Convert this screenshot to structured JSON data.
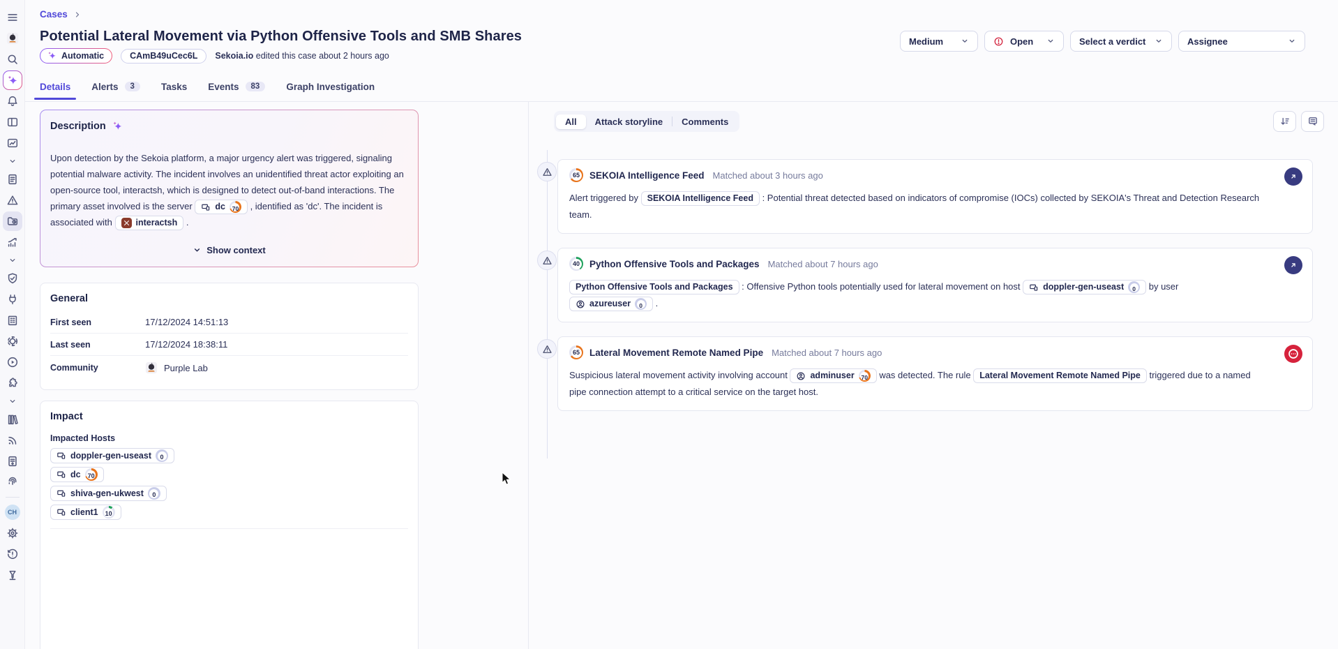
{
  "colors": {
    "accent": "#5149d9",
    "orange": "#e8741c",
    "green": "#1fa15c",
    "neutral_ring": "#c9cde9",
    "status_red": "#d6223c",
    "action_indigo": "#383b80"
  },
  "sidebar": {
    "items": [
      {
        "icon": "menu",
        "name": "menu"
      },
      {
        "icon": "mascot",
        "name": "community-avatar"
      },
      {
        "icon": "search",
        "name": "search"
      },
      {
        "icon": "sparkle",
        "name": "ai-assistant",
        "active": "grad"
      },
      {
        "icon": "bell",
        "name": "notifications"
      },
      {
        "icon": "layout",
        "name": "dashboards"
      },
      {
        "icon": "chartbox",
        "name": "analytics"
      },
      {
        "icon": "chevron",
        "name": "section-expand-1",
        "small": true
      },
      {
        "icon": "doclines",
        "name": "intelligence"
      },
      {
        "icon": "warn",
        "name": "alerts"
      },
      {
        "icon": "folderclock",
        "name": "cases",
        "active": "solid"
      },
      {
        "icon": "trend",
        "name": "statistics"
      },
      {
        "icon": "chevron",
        "name": "section-expand-2",
        "small": true
      },
      {
        "icon": "shieldcheck",
        "name": "security"
      },
      {
        "icon": "plug",
        "name": "integrations"
      },
      {
        "icon": "building",
        "name": "organization"
      },
      {
        "icon": "helm",
        "name": "helm"
      },
      {
        "icon": "playcircle",
        "name": "playbooks"
      },
      {
        "icon": "puzzle",
        "name": "extensions"
      },
      {
        "icon": "chevron",
        "name": "section-expand-3",
        "small": true
      },
      {
        "icon": "books",
        "name": "library"
      },
      {
        "icon": "rss",
        "name": "feeds"
      },
      {
        "icon": "docreport",
        "name": "reports"
      },
      {
        "icon": "touch",
        "name": "threat-hunting"
      },
      {
        "icon": "divider",
        "name": "sidebar-divider"
      },
      {
        "icon": "avatar-ch",
        "name": "user-avatar",
        "label": "CH"
      },
      {
        "icon": "gear",
        "name": "settings"
      },
      {
        "icon": "historyalert",
        "name": "activity-history"
      },
      {
        "icon": "flask",
        "name": "lab"
      }
    ]
  },
  "header": {
    "breadcrumb": "Cases",
    "title": "Potential Lateral Movement via Python Offensive Tools and SMB Shares",
    "badges": {
      "automatic": "Automatic",
      "case_id": "CAmB49uCec6L",
      "edited_by": "Sekoia.io",
      "edited_text": "edited this case about 2 hours ago"
    },
    "controls": {
      "priority": "Medium",
      "status": "Open",
      "verdict": "Select a verdict",
      "assignee": "Assignee"
    }
  },
  "tabs": [
    {
      "label": "Details",
      "active": true
    },
    {
      "label": "Alerts",
      "badge": "3"
    },
    {
      "label": "Tasks"
    },
    {
      "label": "Events",
      "badge": "83"
    },
    {
      "label": "Graph Investigation"
    }
  ],
  "description_card": {
    "title": "Description",
    "segments": [
      {
        "t": "Upon detection by the Sekoia platform, a major urgency alert was triggered, signaling potential malware activity. The incident involves an unidentified threat actor exploiting an open-source tool, interactsh, which is designed to detect out-of-band interactions. The primary asset involved is the server "
      },
      {
        "chip": "host",
        "label": "dc",
        "score": 70
      },
      {
        "t": " , identified as 'dc'. The incident is associated with "
      },
      {
        "chip": "malware",
        "label": "interactsh"
      },
      {
        "t": " ."
      }
    ],
    "show_context": "Show context"
  },
  "general_card": {
    "title": "General",
    "rows": [
      {
        "label": "First seen",
        "value": "17/12/2024 14:51:13"
      },
      {
        "label": "Last seen",
        "value": "17/12/2024 18:38:11"
      },
      {
        "label": "Community",
        "value": "Purple Lab",
        "avatar": true
      }
    ]
  },
  "impact_card": {
    "title": "Impact",
    "hosts_label": "Impacted Hosts",
    "hosts": [
      {
        "label": "doppler-gen-useast",
        "score": 0
      },
      {
        "label": "dc",
        "score": 70
      },
      {
        "label": "shiva-gen-ukwest",
        "score": 0
      },
      {
        "label": "client1",
        "score": 10
      }
    ]
  },
  "feed": {
    "filters": [
      {
        "label": "All",
        "active": true
      },
      {
        "label": "Attack storyline"
      },
      {
        "label": "Comments"
      }
    ],
    "items": [
      {
        "score": 65,
        "title": "SEKOIA Intelligence Feed",
        "matched": "Matched about 3 hours ago",
        "action": "open",
        "segments": [
          {
            "t": "Alert triggered by "
          },
          {
            "chip": "rule",
            "label": "SEKOIA Intelligence Feed"
          },
          {
            "t": " : Potential threat detected based on indicators of compromise (IOCs) collected by SEKOIA's Threat and Detection Research team."
          }
        ]
      },
      {
        "score": 40,
        "title": "Python Offensive Tools and Packages",
        "matched": "Matched about 7 hours ago",
        "action": "open",
        "segments": [
          {
            "chip": "rule",
            "label": "Python Offensive Tools and Packages"
          },
          {
            "t": " : Offensive Python tools potentially used for lateral movement on host "
          },
          {
            "chip": "host",
            "label": "doppler-gen-useast",
            "score": 0
          },
          {
            "t": " by user "
          },
          {
            "chip": "user",
            "label": "azureuser",
            "score": 0
          },
          {
            "t": " ."
          }
        ]
      },
      {
        "score": 65,
        "title": "Lateral Movement Remote Named Pipe",
        "matched": "Matched about 7 hours ago",
        "action": "record",
        "segments": [
          {
            "t": "Suspicious lateral movement activity involving account "
          },
          {
            "chip": "user",
            "label": "adminuser",
            "score": 70
          },
          {
            "t": " was detected. The rule "
          },
          {
            "chip": "rule",
            "label": "Lateral Movement Remote Named Pipe"
          },
          {
            "t": " triggered due to a named pipe connection attempt to a critical service on the target host."
          }
        ]
      }
    ]
  }
}
